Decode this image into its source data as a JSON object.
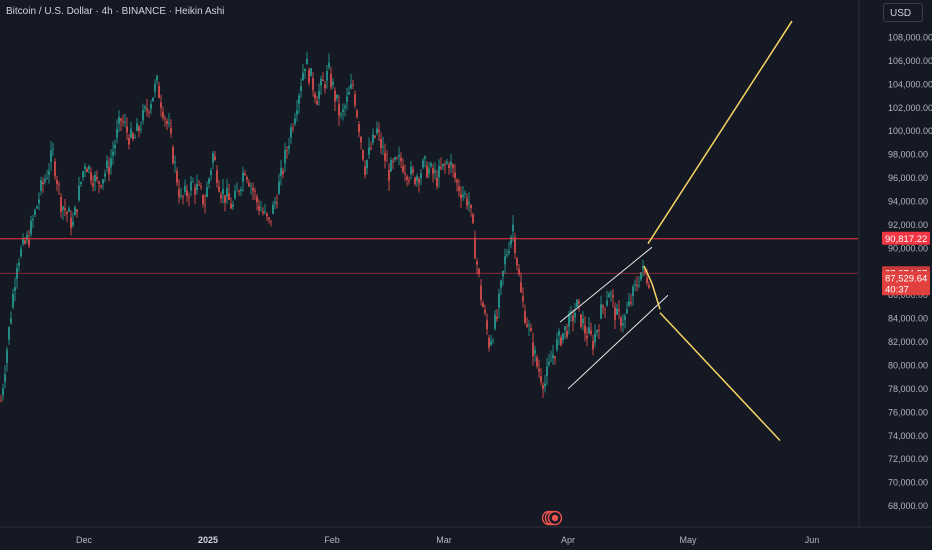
{
  "header": {
    "title": "Bitcoin / U.S. Dollar · 4h · BINANCE · Heikin Ashi",
    "currency": "USD"
  },
  "colors": {
    "background": "#151924",
    "up": "#26a69a",
    "down": "#ef5350",
    "level_line": "#f23645",
    "drawing": "#f7d463",
    "channel": "#e8e8e8",
    "grid": "#1f2431",
    "axis_text": "#b2b5be"
  },
  "chart_data": {
    "type": "candlestick",
    "title": "Bitcoin / U.S. Dollar · 4h · BINANCE · Heikin Ashi",
    "x_labels": [
      "Dec",
      "2025",
      "Feb",
      "Mar",
      "Apr",
      "May",
      "Jun"
    ],
    "x_label_strong": "2025",
    "y_ticks": [
      68000,
      70000,
      72000,
      74000,
      76000,
      78000,
      80000,
      82000,
      84000,
      86000,
      88000,
      90000,
      92000,
      94000,
      96000,
      98000,
      100000,
      102000,
      104000,
      106000,
      108000
    ],
    "y_tick_labels": [
      "68,000.00",
      "70,000.00",
      "72,000.00",
      "74,000.00",
      "76,000.00",
      "78,000.00",
      "80,000.00",
      "82,000.00",
      "84,000.00",
      "86,000.00",
      "88,000.00",
      "90,000.00",
      "92,000.00",
      "94,000.00",
      "96,000.00",
      "98,000.00",
      "100,000.00",
      "102,000.00",
      "104,000.00",
      "106,000.00",
      "108,000.00"
    ],
    "ylim": [
      66300,
      111200
    ],
    "grid": false,
    "price_path": [
      {
        "d": 0,
        "p": 77000
      },
      {
        "d": 4,
        "p": 89000
      },
      {
        "d": 7,
        "p": 91000
      },
      {
        "d": 10,
        "p": 95000
      },
      {
        "d": 13,
        "p": 98000
      },
      {
        "d": 15,
        "p": 94000
      },
      {
        "d": 18,
        "p": 92000
      },
      {
        "d": 21,
        "p": 97500
      },
      {
        "d": 24,
        "p": 95500
      },
      {
        "d": 27,
        "p": 97000
      },
      {
        "d": 30,
        "p": 101000
      },
      {
        "d": 33,
        "p": 99000
      },
      {
        "d": 36,
        "p": 101500
      },
      {
        "d": 39,
        "p": 104000
      },
      {
        "d": 42,
        "p": 100000
      },
      {
        "d": 45,
        "p": 94000
      },
      {
        "d": 48,
        "p": 95500
      },
      {
        "d": 51,
        "p": 94000
      },
      {
        "d": 53,
        "p": 98000
      },
      {
        "d": 55,
        "p": 95000
      },
      {
        "d": 58,
        "p": 93500
      },
      {
        "d": 61,
        "p": 97000
      },
      {
        "d": 64,
        "p": 94000
      },
      {
        "d": 67,
        "p": 92000
      },
      {
        "d": 70,
        "p": 96000
      },
      {
        "d": 73,
        "p": 101000
      },
      {
        "d": 76,
        "p": 106000
      },
      {
        "d": 79,
        "p": 103000
      },
      {
        "d": 82,
        "p": 105000
      },
      {
        "d": 85,
        "p": 101000
      },
      {
        "d": 88,
        "p": 104000
      },
      {
        "d": 91,
        "p": 97000
      },
      {
        "d": 94,
        "p": 100000
      },
      {
        "d": 97,
        "p": 96500
      },
      {
        "d": 100,
        "p": 97500
      },
      {
        "d": 103,
        "p": 96000
      },
      {
        "d": 106,
        "p": 97000
      },
      {
        "d": 109,
        "p": 96000
      },
      {
        "d": 112,
        "p": 97500
      },
      {
        "d": 114,
        "p": 95500
      },
      {
        "d": 117,
        "p": 94000
      },
      {
        "d": 120,
        "p": 86000
      },
      {
        "d": 122,
        "p": 82000
      },
      {
        "d": 124,
        "p": 84000
      },
      {
        "d": 126,
        "p": 89000
      },
      {
        "d": 128,
        "p": 92000
      },
      {
        "d": 130,
        "p": 86000
      },
      {
        "d": 132,
        "p": 83000
      },
      {
        "d": 134,
        "p": 80000
      },
      {
        "d": 136,
        "p": 78500
      },
      {
        "d": 138,
        "p": 81000
      },
      {
        "d": 140,
        "p": 82500
      },
      {
        "d": 142,
        "p": 83500
      },
      {
        "d": 144,
        "p": 85000
      },
      {
        "d": 146,
        "p": 83000
      },
      {
        "d": 148,
        "p": 82000
      },
      {
        "d": 150,
        "p": 84500
      },
      {
        "d": 152,
        "p": 86500
      },
      {
        "d": 154,
        "p": 84000
      },
      {
        "d": 156,
        "p": 84000
      },
      {
        "d": 158,
        "p": 86000
      },
      {
        "d": 160,
        "p": 88000
      },
      {
        "d": 162,
        "p": 87500
      }
    ],
    "horizontal_levels": [
      {
        "value": 90817.22,
        "label": "90,817.22"
      },
      {
        "value": 87874.57,
        "label": "87,874.57"
      }
    ],
    "last_price": {
      "value": 87529.64,
      "label": "87,529.64",
      "countdown": "40:37"
    },
    "drawings": [
      {
        "type": "trend_line",
        "from": {
          "d": 162,
          "p": 90400
        },
        "to": {
          "d": 198,
          "p": 109400
        }
      },
      {
        "type": "trend_line",
        "from": {
          "d": 165,
          "p": 84500
        },
        "to": {
          "d": 195,
          "p": 73600
        }
      },
      {
        "type": "channel_line",
        "from": {
          "d": 140,
          "p": 83700
        },
        "to": {
          "d": 163,
          "p": 90100
        }
      },
      {
        "type": "channel_line",
        "from": {
          "d": 142,
          "p": 78000
        },
        "to": {
          "d": 167,
          "p": 86000
        }
      },
      {
        "type": "path_arrow",
        "points": [
          {
            "d": 161,
            "p": 88500
          },
          {
            "d": 163,
            "p": 87000
          },
          {
            "d": 165,
            "p": 84800
          }
        ]
      }
    ]
  }
}
